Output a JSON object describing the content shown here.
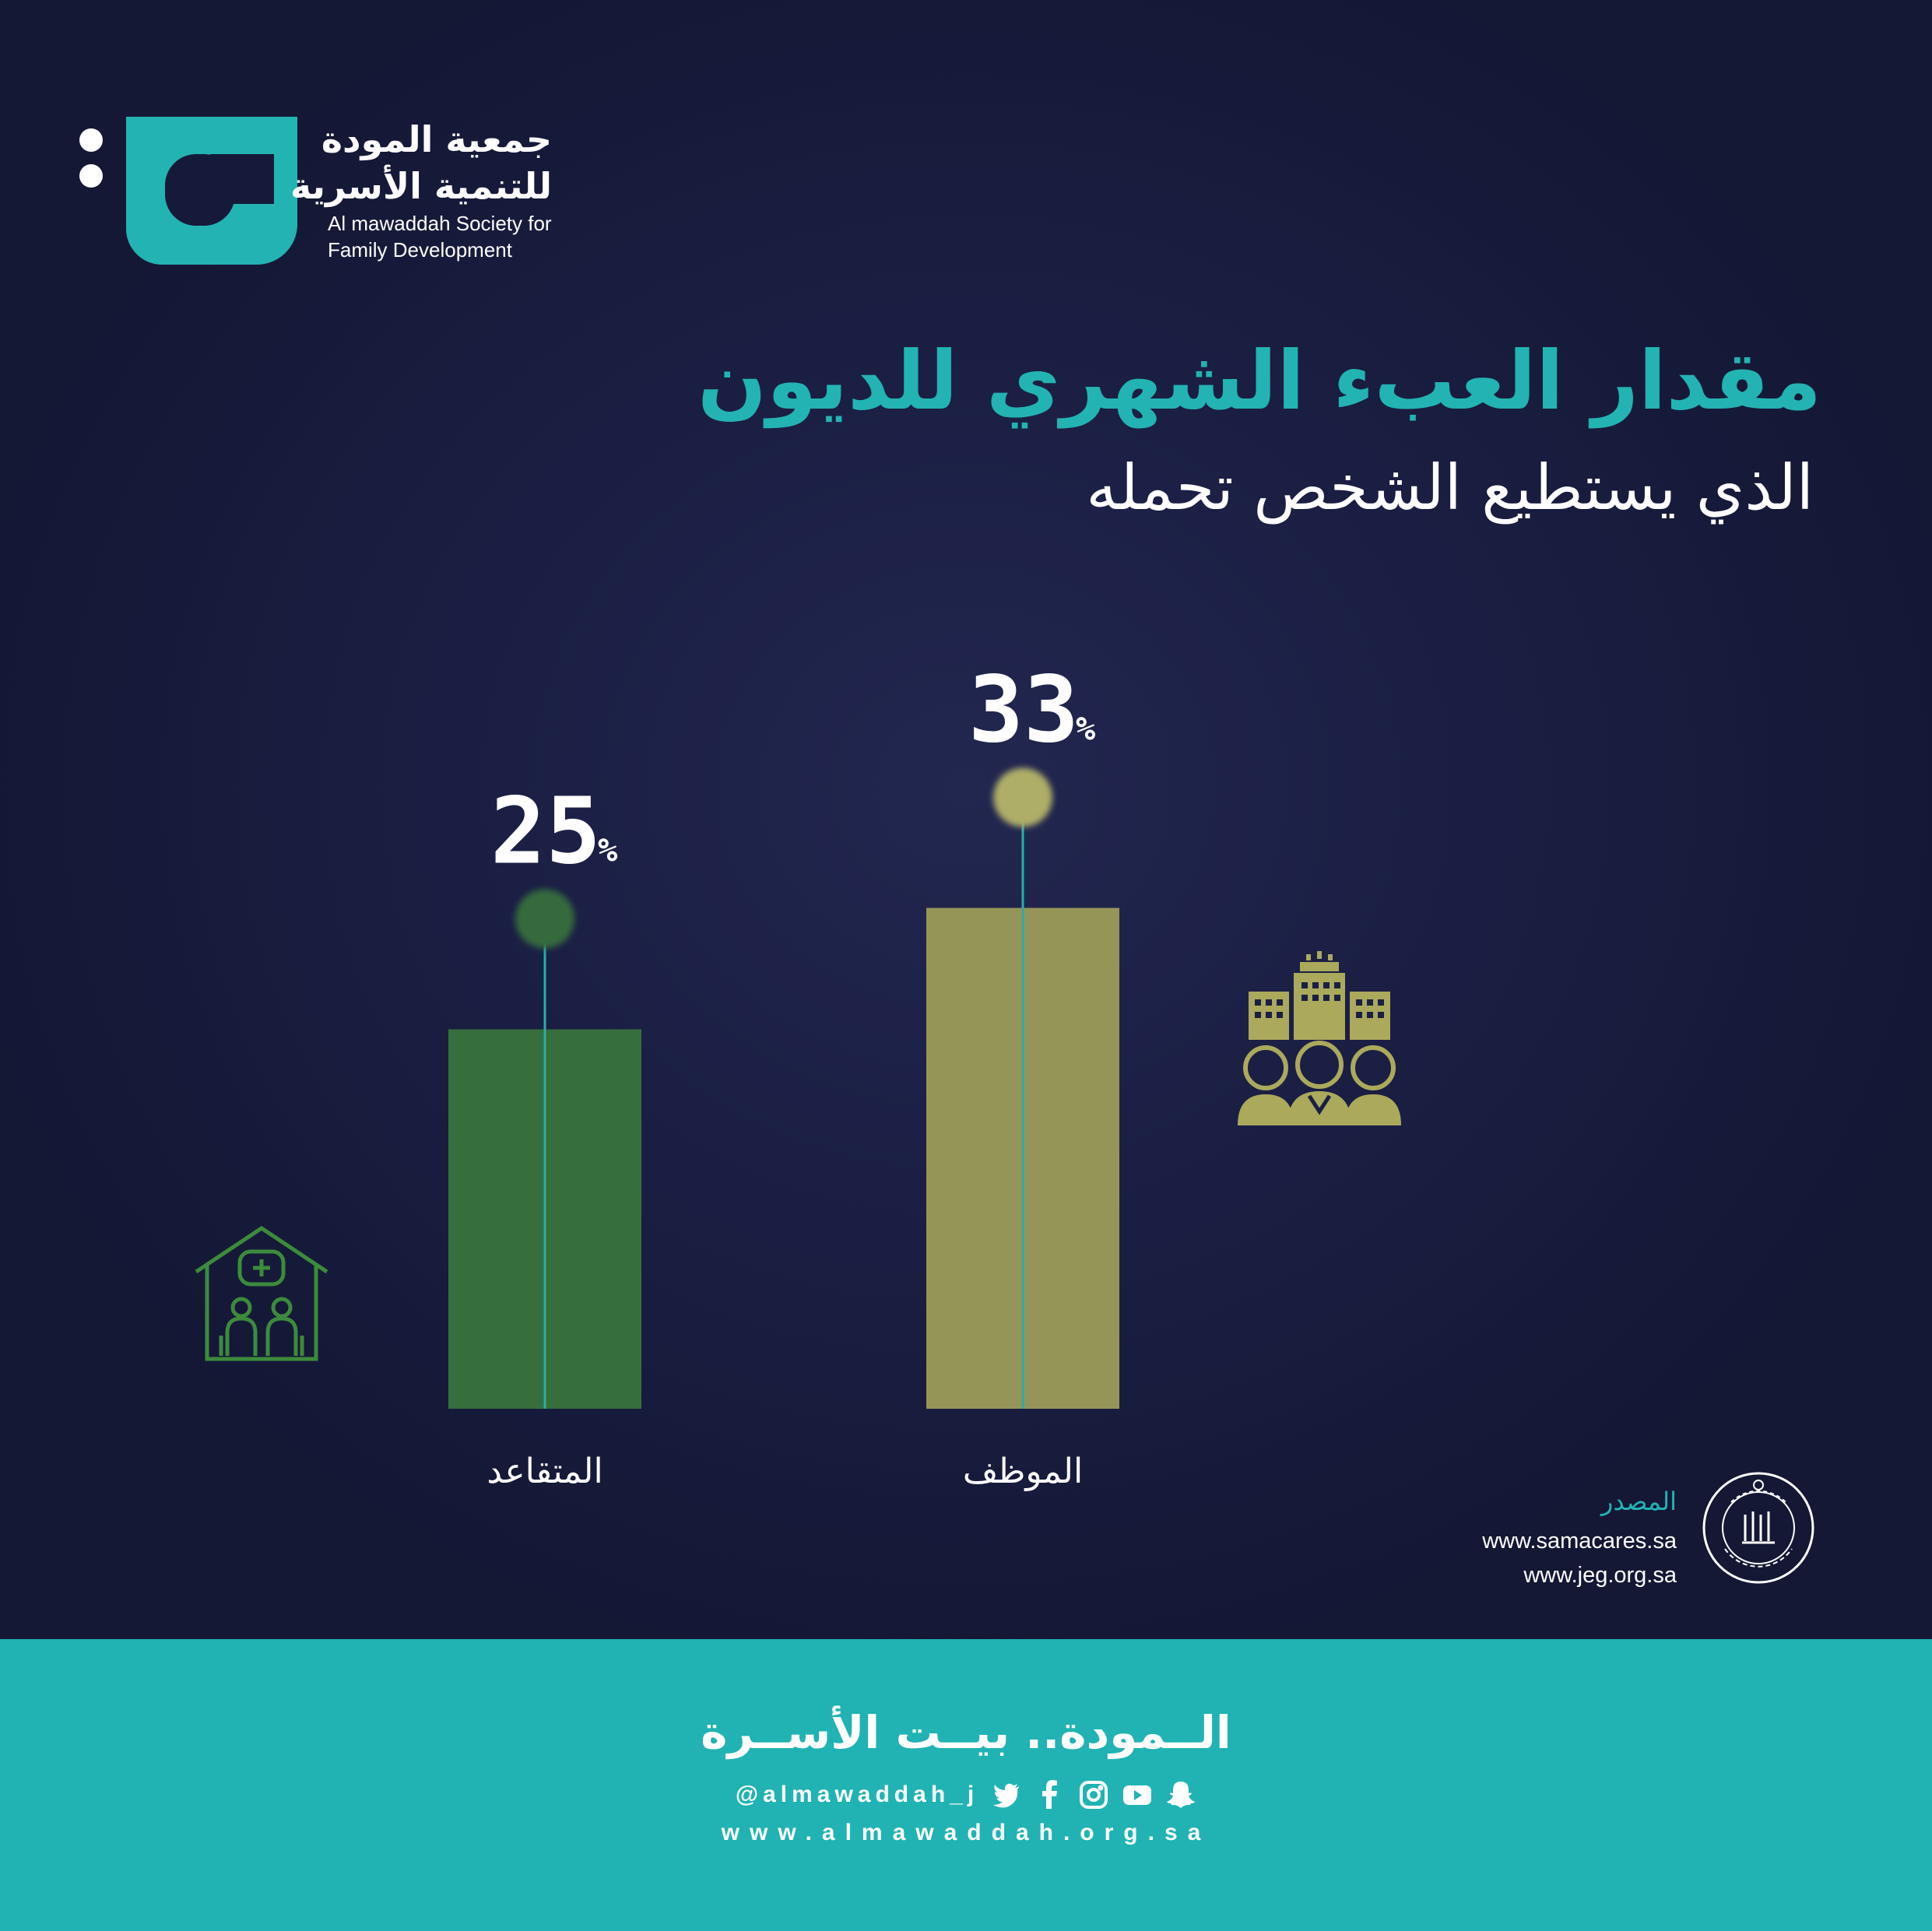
{
  "brand": {
    "name_ar_line1": "جمعية المودة",
    "name_ar_line2": "للتنمية الأسرية",
    "name_en_line1": "Al mawaddah Society for",
    "name_en_line2": "Family Development",
    "accent_color": "#23b3b2"
  },
  "header": {
    "title": "مقدار العبء الشهري للديون",
    "subtitle": "الذي يستطيع الشخص تحمله"
  },
  "chart_data": {
    "type": "bar",
    "categories": [
      "المتقاعد",
      "الموظف"
    ],
    "values": [
      25,
      33
    ],
    "value_labels": [
      "25",
      "33"
    ],
    "unit": "%",
    "colors": [
      "#376e3d",
      "#969558"
    ],
    "marker_colors": [
      "#356b3c",
      "#aeae68"
    ],
    "icons": [
      "retirement-home-icon",
      "employees-buildings-icon"
    ],
    "ylim": [
      0,
      40
    ],
    "grid": false,
    "title": "مقدار العبء الشهري للديون",
    "xlabel": "",
    "ylabel": ""
  },
  "source": {
    "label": "المصدر",
    "urls": [
      "www.samacares.sa",
      "www.jeg.org.sa"
    ]
  },
  "footer": {
    "slogan": "الــمودة.. بيــت الأســرة",
    "handle": "@almawaddah_j",
    "website": "www.almawaddah.org.sa",
    "background": "#21b3b3",
    "social_icons": [
      "twitter-icon",
      "facebook-icon",
      "instagram-icon",
      "youtube-icon",
      "snapchat-icon"
    ]
  }
}
